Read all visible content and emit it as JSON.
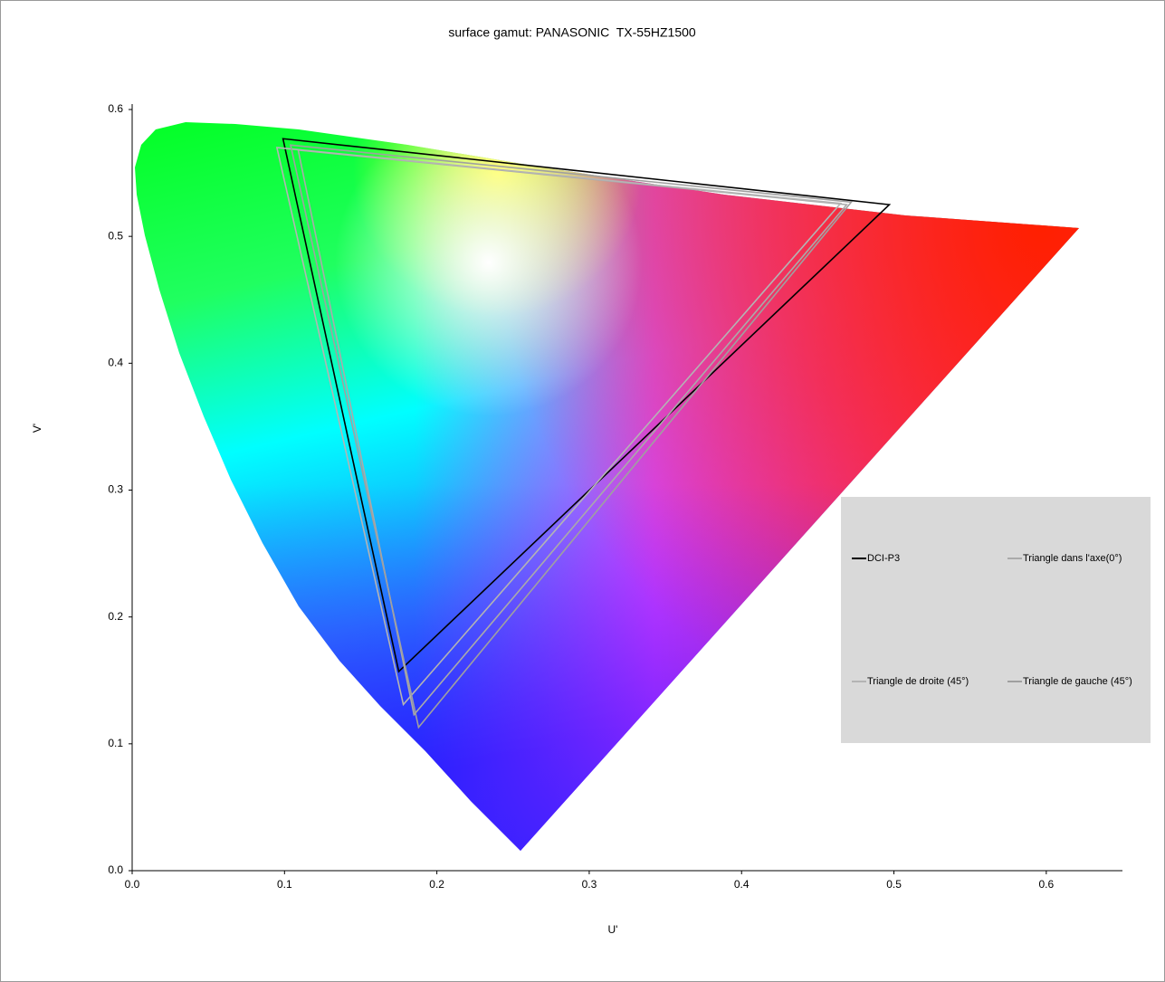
{
  "chart_data": {
    "type": "polygon",
    "title": "surface gamut: PANASONIC  TX-55HZ1500",
    "x_label": "U'",
    "y_label": "V'",
    "xlim": [
      0,
      0.65
    ],
    "ylim": [
      0,
      0.6
    ],
    "xticks": [
      {
        "value": 0,
        "label": "0.0"
      },
      0.1,
      0.2,
      0.3,
      0.4,
      0.5,
      0.6
    ],
    "yticks": [
      {
        "value": 0,
        "label": "0.0"
      },
      0.1,
      0.2,
      0.3,
      0.4,
      0.5,
      0.6
    ],
    "grid": false,
    "legend": "right",
    "series": [
      {
        "name": "DCI-P3",
        "color": "#000000",
        "x": [
          0.497,
          0.099,
          0.175
        ],
        "values": [
          0.525,
          0.577,
          0.157
        ]
      },
      {
        "name": "Triangle dans l'axe(0°)",
        "color": "#aaaaaa",
        "x": [
          0.469,
          0.109,
          0.185
        ],
        "values": [
          0.525,
          0.568,
          0.123
        ]
      },
      {
        "name": "Triangle de droite (45°)",
        "color": "#b4b4b4",
        "x": [
          0.465,
          0.095,
          0.178
        ],
        "values": [
          0.526,
          0.57,
          0.131
        ]
      },
      {
        "name": "Triangle de gauche (45°)",
        "color": "#a0a0a0",
        "x": [
          0.472,
          0.104,
          0.188
        ],
        "values": [
          0.527,
          0.572,
          0.113
        ]
      }
    ]
  }
}
